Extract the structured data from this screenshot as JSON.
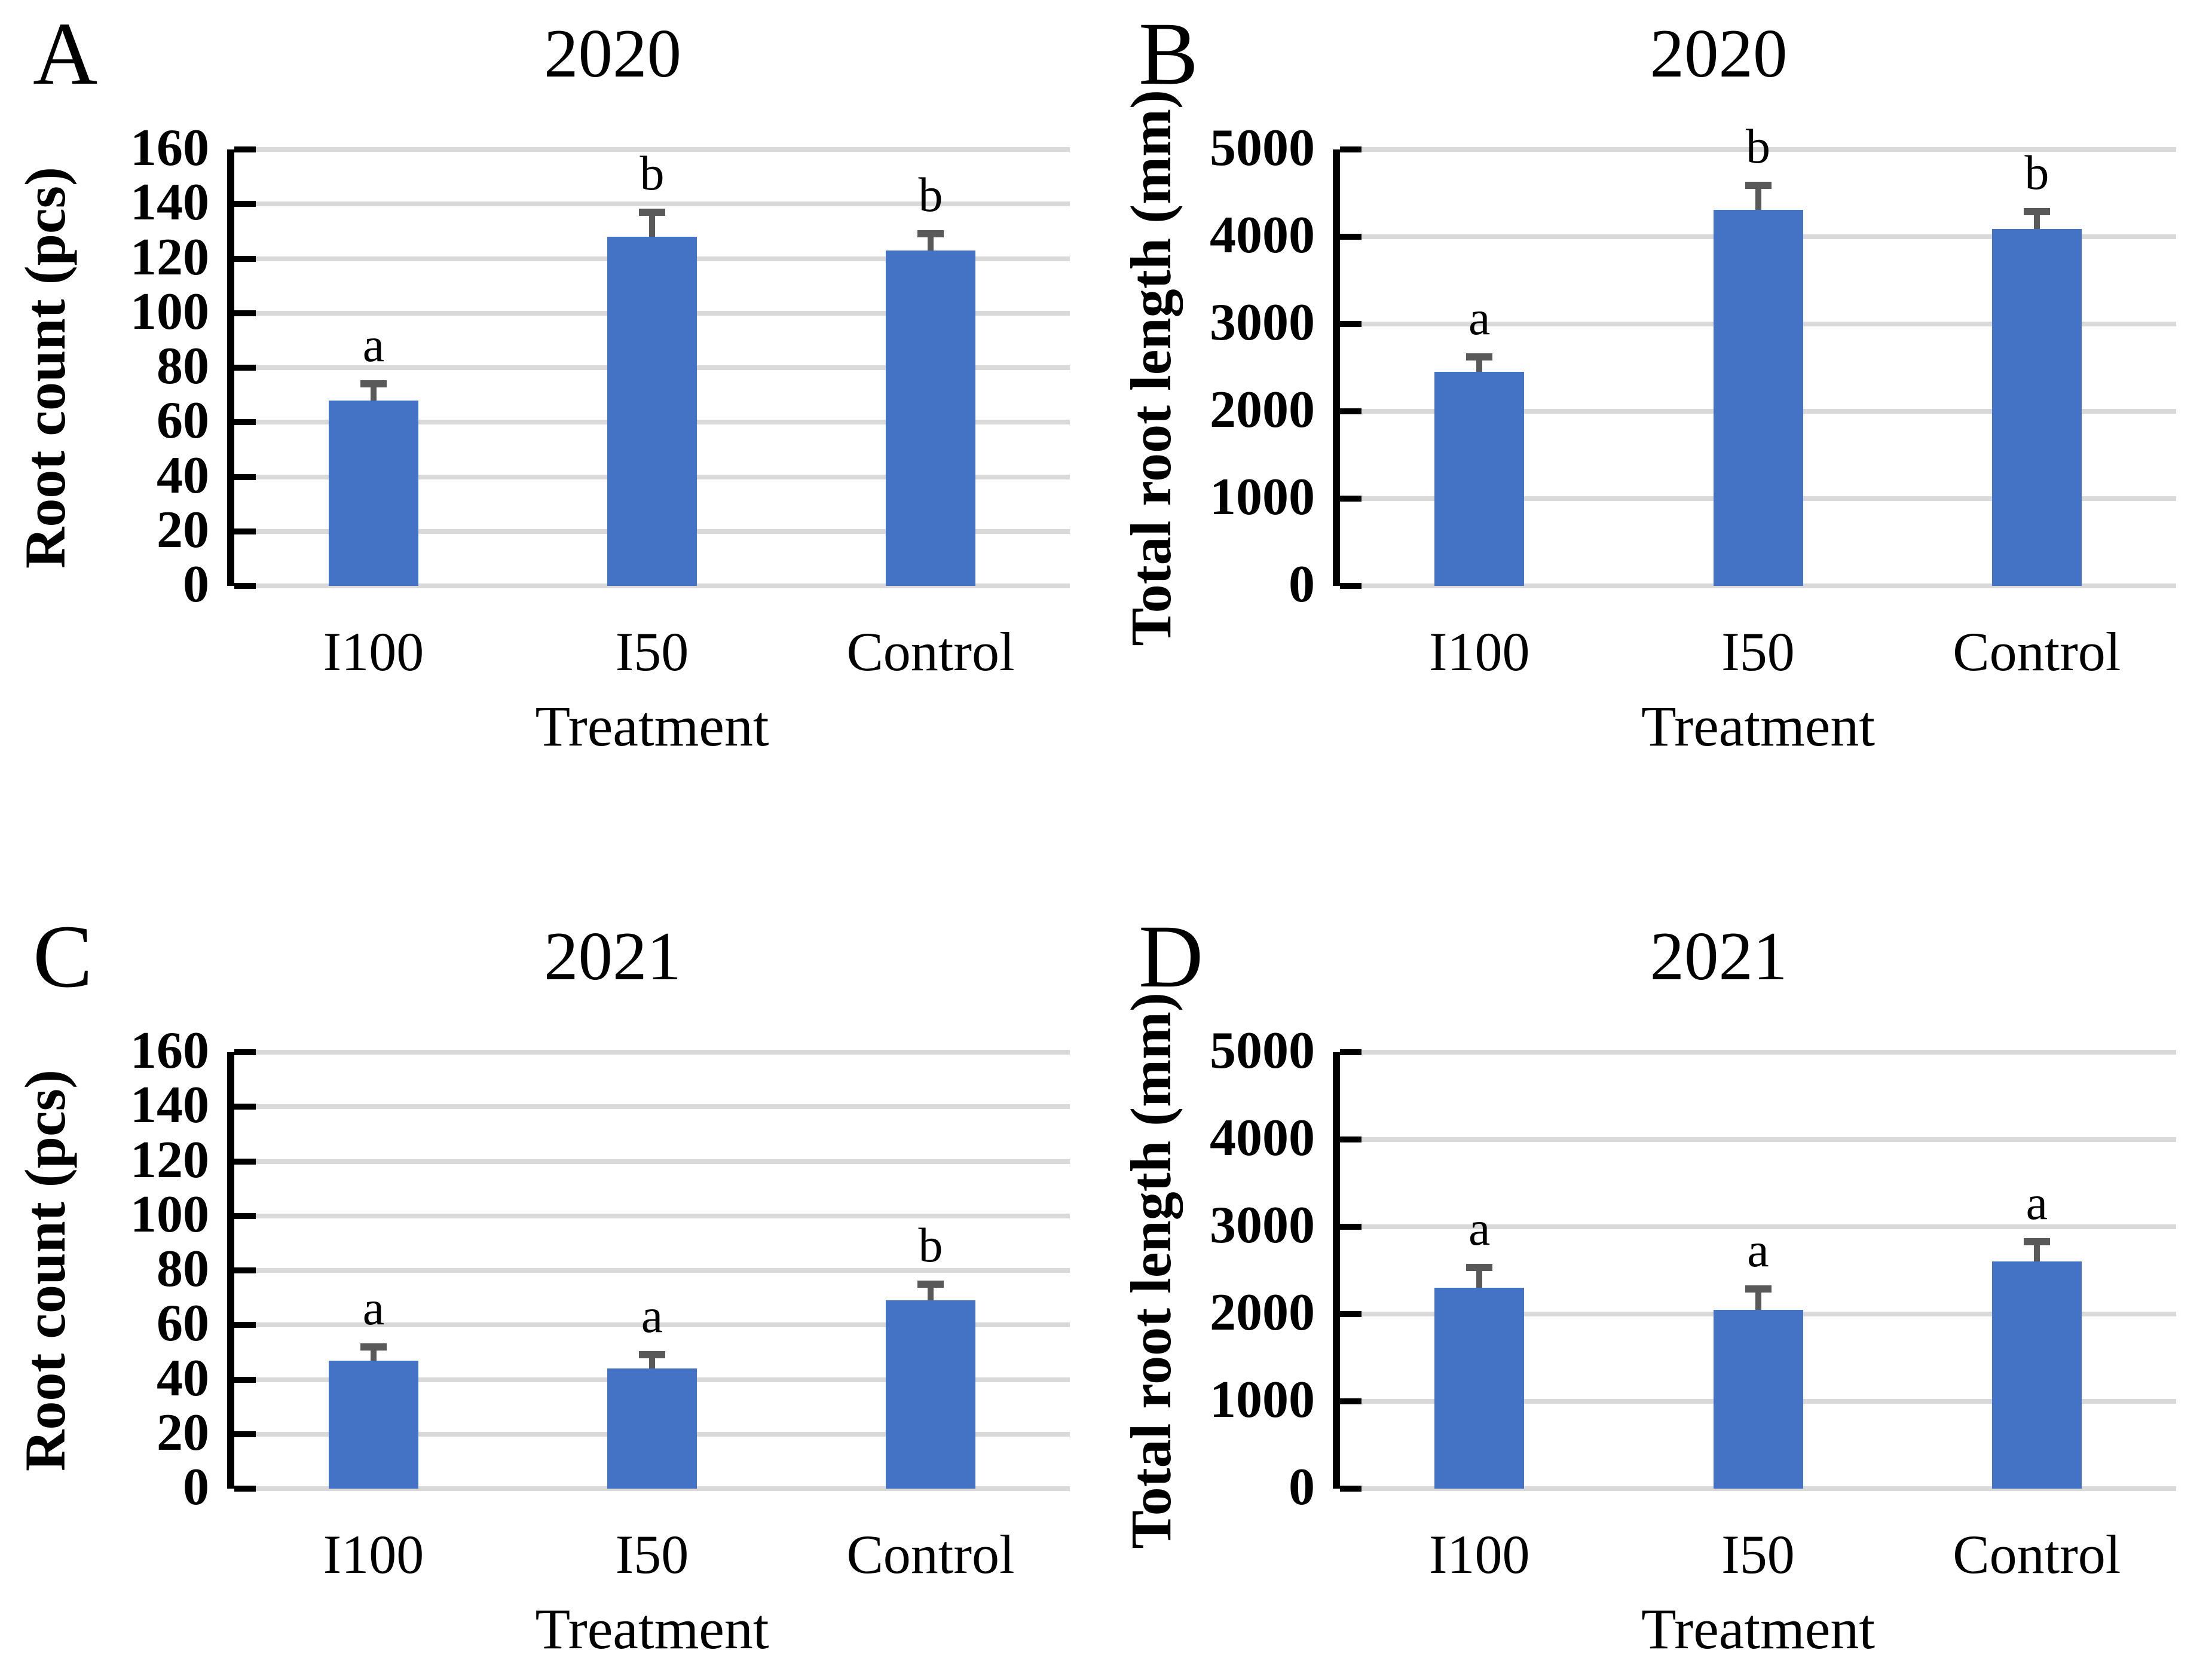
{
  "figure": {
    "background_color": "#FFFFFF",
    "bar_color": "#4472C4",
    "error_bar_color": "#595959",
    "gridline_color": "#D9D9D9",
    "axis_color": "#000000"
  },
  "chart_data": [
    {
      "type": "bar",
      "panel_letter": "A",
      "title": "2020",
      "xlabel": "Treatment",
      "ylabel": "Root count (pcs)",
      "ylim": [
        0,
        160
      ],
      "yticks": [
        0,
        20,
        40,
        60,
        80,
        100,
        120,
        140,
        160
      ],
      "grid": true,
      "legend": "none",
      "categories": [
        "I100",
        "I50",
        "Control"
      ],
      "values": [
        68,
        128,
        123
      ],
      "error_plus": [
        6,
        9,
        6
      ],
      "sig_letters": [
        "a",
        "b",
        "b"
      ],
      "bar_color": "#4472C4",
      "error_color": "#595959",
      "gridline_color": "#D9D9D9"
    },
    {
      "type": "bar",
      "panel_letter": "B",
      "title": "2020",
      "xlabel": "Treatment",
      "ylabel": "Total root length (mm)",
      "ylim": [
        0,
        5000
      ],
      "yticks": [
        0,
        1000,
        2000,
        3000,
        4000,
        5000
      ],
      "grid": true,
      "legend": "none",
      "categories": [
        "I100",
        "I50",
        "Control"
      ],
      "values": [
        2450,
        4310,
        4090
      ],
      "error_plus": [
        170,
        280,
        200
      ],
      "sig_letters": [
        "a",
        "b",
        "b"
      ],
      "bar_color": "#4472C4",
      "error_color": "#595959",
      "gridline_color": "#D9D9D9"
    },
    {
      "type": "bar",
      "panel_letter": "C",
      "title": "2021",
      "xlabel": "Treatment",
      "ylabel": "Root count (pcs)",
      "ylim": [
        0,
        160
      ],
      "yticks": [
        0,
        20,
        40,
        60,
        80,
        100,
        120,
        140,
        160
      ],
      "grid": true,
      "legend": "none",
      "categories": [
        "I100",
        "I50",
        "Control"
      ],
      "values": [
        47,
        44,
        69
      ],
      "error_plus": [
        5,
        5,
        6
      ],
      "sig_letters": [
        "a",
        "a",
        "b"
      ],
      "bar_color": "#4472C4",
      "error_color": "#595959",
      "gridline_color": "#D9D9D9"
    },
    {
      "type": "bar",
      "panel_letter": "D",
      "title": "2021",
      "xlabel": "Treatment",
      "ylabel": "Total root length (mm)",
      "ylim": [
        0,
        5000
      ],
      "yticks": [
        0,
        1000,
        2000,
        3000,
        4000,
        5000
      ],
      "grid": true,
      "legend": "none",
      "categories": [
        "I100",
        "I50",
        "Control"
      ],
      "values": [
        2300,
        2050,
        2600
      ],
      "error_plus": [
        235,
        240,
        230
      ],
      "sig_letters": [
        "a",
        "a",
        "a"
      ],
      "bar_color": "#4472C4",
      "error_color": "#595959",
      "gridline_color": "#D9D9D9"
    }
  ]
}
